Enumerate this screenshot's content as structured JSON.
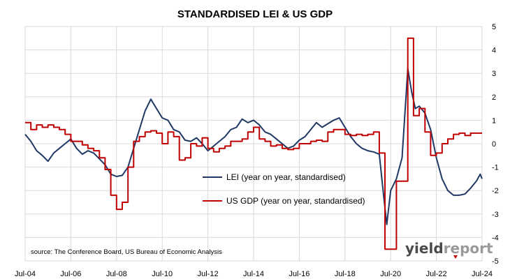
{
  "title": "STANDARDISED LEI & US GDP",
  "source": "source: The Conference Board, US Bureau of Economic Analysis",
  "logo": {
    "text_dark": "yield",
    "text_light": "report",
    "color_dark": "#4a4a4a",
    "color_light": "#9a9a9a",
    "accent": "#c00000"
  },
  "chart_data": {
    "type": "line",
    "title": "STANDARDISED LEI & US GDP",
    "x_ticks": [
      "Jul-04",
      "Jul-06",
      "Jul-08",
      "Jul-10",
      "Jul-12",
      "Jul-14",
      "Jul-16",
      "Jul-18",
      "Jul-20",
      "Jul-22",
      "Jul-24"
    ],
    "x_range": [
      2004.5,
      2024.5
    ],
    "ylim": [
      -5,
      5
    ],
    "y_ticks": [
      5,
      4,
      3,
      2,
      1,
      0,
      -1,
      -2,
      -3,
      -4,
      -5
    ],
    "y_axis_side": "right",
    "grid": true,
    "legend_placement": "center",
    "series": [
      {
        "name": "LEI (year on year, standardised)",
        "color": "#1f3864",
        "step": false,
        "points": [
          [
            2004.5,
            0.4
          ],
          [
            2004.75,
            0.1
          ],
          [
            2005.0,
            -0.3
          ],
          [
            2005.25,
            -0.5
          ],
          [
            2005.5,
            -0.75
          ],
          [
            2005.75,
            -0.4
          ],
          [
            2006.0,
            -0.2
          ],
          [
            2006.25,
            0.0
          ],
          [
            2006.5,
            0.2
          ],
          [
            2006.75,
            -0.2
          ],
          [
            2007.0,
            -0.45
          ],
          [
            2007.25,
            -0.3
          ],
          [
            2007.5,
            -0.4
          ],
          [
            2007.75,
            -0.65
          ],
          [
            2008.0,
            -0.9
          ],
          [
            2008.25,
            -1.3
          ],
          [
            2008.5,
            -1.4
          ],
          [
            2008.75,
            -1.35
          ],
          [
            2009.0,
            -1.0
          ],
          [
            2009.25,
            -0.2
          ],
          [
            2009.5,
            0.6
          ],
          [
            2009.75,
            1.4
          ],
          [
            2010.0,
            1.9
          ],
          [
            2010.25,
            1.5
          ],
          [
            2010.5,
            1.1
          ],
          [
            2010.75,
            1.0
          ],
          [
            2011.0,
            0.6
          ],
          [
            2011.25,
            0.5
          ],
          [
            2011.5,
            0.15
          ],
          [
            2011.75,
            0.1
          ],
          [
            2012.0,
            0.25
          ],
          [
            2012.25,
            0.0
          ],
          [
            2012.5,
            -0.3
          ],
          [
            2012.75,
            -0.1
          ],
          [
            2013.0,
            0.1
          ],
          [
            2013.25,
            0.3
          ],
          [
            2013.5,
            0.6
          ],
          [
            2013.75,
            0.7
          ],
          [
            2014.0,
            1.05
          ],
          [
            2014.25,
            0.9
          ],
          [
            2014.5,
            1.0
          ],
          [
            2014.75,
            0.8
          ],
          [
            2015.0,
            0.5
          ],
          [
            2015.25,
            0.4
          ],
          [
            2015.5,
            0.2
          ],
          [
            2015.75,
            0.0
          ],
          [
            2016.0,
            -0.2
          ],
          [
            2016.25,
            -0.1
          ],
          [
            2016.5,
            0.15
          ],
          [
            2016.75,
            0.3
          ],
          [
            2017.0,
            0.6
          ],
          [
            2017.25,
            0.9
          ],
          [
            2017.5,
            0.7
          ],
          [
            2017.75,
            0.85
          ],
          [
            2018.0,
            1.0
          ],
          [
            2018.25,
            1.1
          ],
          [
            2018.5,
            0.7
          ],
          [
            2018.75,
            0.3
          ],
          [
            2019.0,
            0.0
          ],
          [
            2019.25,
            -0.2
          ],
          [
            2019.5,
            -0.3
          ],
          [
            2019.75,
            -0.35
          ],
          [
            2020.0,
            -0.45
          ],
          [
            2020.2,
            -2.3
          ],
          [
            2020.33,
            -3.45
          ],
          [
            2020.5,
            -2.0
          ],
          [
            2020.75,
            -1.5
          ],
          [
            2021.0,
            -0.6
          ],
          [
            2021.25,
            3.2
          ],
          [
            2021.42,
            2.2
          ],
          [
            2021.58,
            1.5
          ],
          [
            2021.75,
            1.6
          ],
          [
            2022.0,
            1.3
          ],
          [
            2022.25,
            0.6
          ],
          [
            2022.5,
            -0.6
          ],
          [
            2022.75,
            -1.5
          ],
          [
            2023.0,
            -2.0
          ],
          [
            2023.25,
            -2.2
          ],
          [
            2023.5,
            -2.2
          ],
          [
            2023.75,
            -2.15
          ],
          [
            2024.0,
            -1.9
          ],
          [
            2024.25,
            -1.6
          ],
          [
            2024.42,
            -1.3
          ],
          [
            2024.5,
            -1.5
          ]
        ]
      },
      {
        "name": "US GDP (year on year, standardised)",
        "color": "#c00000",
        "step": true,
        "points": [
          [
            2004.5,
            0.9
          ],
          [
            2004.75,
            0.6
          ],
          [
            2005.0,
            0.8
          ],
          [
            2005.25,
            0.7
          ],
          [
            2005.5,
            0.8
          ],
          [
            2005.75,
            0.7
          ],
          [
            2006.0,
            0.6
          ],
          [
            2006.25,
            0.4
          ],
          [
            2006.5,
            0.1
          ],
          [
            2006.75,
            0.1
          ],
          [
            2007.0,
            -0.05
          ],
          [
            2007.25,
            -0.2
          ],
          [
            2007.5,
            -0.3
          ],
          [
            2007.75,
            -0.6
          ],
          [
            2008.0,
            -1.1
          ],
          [
            2008.25,
            -2.2
          ],
          [
            2008.5,
            -2.8
          ],
          [
            2008.75,
            -2.5
          ],
          [
            2009.0,
            -1.0
          ],
          [
            2009.25,
            0.1
          ],
          [
            2009.5,
            0.3
          ],
          [
            2009.75,
            0.5
          ],
          [
            2010.0,
            0.55
          ],
          [
            2010.25,
            0.45
          ],
          [
            2010.5,
            0.0
          ],
          [
            2010.75,
            0.5
          ],
          [
            2011.0,
            0.3
          ],
          [
            2011.25,
            -0.7
          ],
          [
            2011.5,
            -0.6
          ],
          [
            2011.75,
            0.0
          ],
          [
            2012.0,
            -0.1
          ],
          [
            2012.25,
            0.25
          ],
          [
            2012.5,
            -0.2
          ],
          [
            2012.75,
            -0.35
          ],
          [
            2013.0,
            -0.2
          ],
          [
            2013.25,
            -0.1
          ],
          [
            2013.5,
            0.1
          ],
          [
            2013.75,
            0.1
          ],
          [
            2014.0,
            0.2
          ],
          [
            2014.25,
            0.5
          ],
          [
            2014.5,
            0.7
          ],
          [
            2014.75,
            0.2
          ],
          [
            2015.0,
            0.1
          ],
          [
            2015.25,
            -0.1
          ],
          [
            2015.5,
            -0.05
          ],
          [
            2015.75,
            -0.2
          ],
          [
            2016.0,
            -0.25
          ],
          [
            2016.25,
            -0.2
          ],
          [
            2016.5,
            0.0
          ],
          [
            2016.75,
            0.0
          ],
          [
            2017.0,
            0.1
          ],
          [
            2017.25,
            0.15
          ],
          [
            2017.5,
            0.1
          ],
          [
            2017.75,
            0.5
          ],
          [
            2018.0,
            0.6
          ],
          [
            2018.25,
            0.6
          ],
          [
            2018.5,
            0.4
          ],
          [
            2018.75,
            0.35
          ],
          [
            2019.0,
            0.4
          ],
          [
            2019.25,
            0.35
          ],
          [
            2019.5,
            0.4
          ],
          [
            2019.75,
            0.5
          ],
          [
            2020.0,
            -0.4
          ],
          [
            2020.25,
            -4.5
          ],
          [
            2020.5,
            -4.5
          ],
          [
            2020.75,
            -1.6
          ],
          [
            2021.0,
            -1.6
          ],
          [
            2021.25,
            4.5
          ],
          [
            2021.5,
            1.2
          ],
          [
            2021.75,
            1.5
          ],
          [
            2022.0,
            0.5
          ],
          [
            2022.25,
            -0.5
          ],
          [
            2022.5,
            -0.4
          ],
          [
            2022.75,
            0.0
          ],
          [
            2023.0,
            0.2
          ],
          [
            2023.25,
            0.4
          ],
          [
            2023.5,
            0.45
          ],
          [
            2023.75,
            0.35
          ],
          [
            2024.0,
            0.45
          ],
          [
            2024.25,
            0.45
          ]
        ]
      }
    ]
  }
}
